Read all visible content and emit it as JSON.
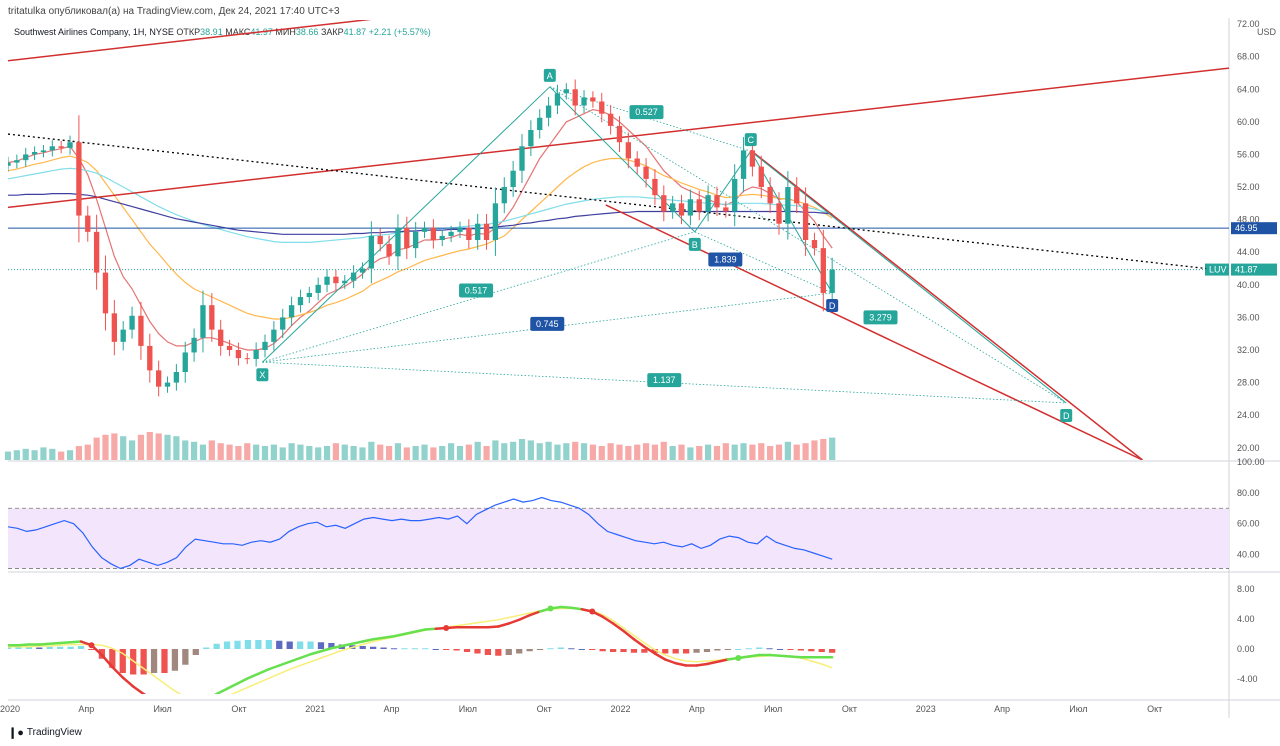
{
  "header": {
    "attribution": "tritatulka опубликовал(а) на TradingView.com, Дек 24, 2021 17:40 UTC+3"
  },
  "legend": {
    "symbol": "Southwest Airlines Company, 1Н, NYSE",
    "open_label": "ОТКР",
    "open": "38.91",
    "high_label": "МАКС",
    "high": "41.97",
    "low_label": "МИН",
    "low": "38.66",
    "close_label": "ЗАКР",
    "close": "41.87",
    "change": "+2.21 (+5.57%)"
  },
  "footer": {
    "brand": "TradingView"
  },
  "colors": {
    "bull": "#26a69a",
    "bear": "#ef5350",
    "bull_volume": "#92d2cc",
    "bear_volume": "#f7a9a7",
    "price_line": "#1e53a5",
    "current_price": "#26a69a",
    "rsi_line": "#2962ff",
    "rsi_band": "#f3e5fb",
    "channel": "#d32f2f",
    "pattern": "#26a69a",
    "macd_fast": "#66e04d",
    "macd_slow": "#f7ef7a"
  },
  "chart_data": [
    {
      "type": "candlestick",
      "panel": "price",
      "currency": "USD",
      "y_ticks": [
        "72.00",
        "68.00",
        "64.00",
        "60.00",
        "56.00",
        "52.00",
        "48.00",
        "44.00",
        "40.00",
        "36.00",
        "32.00",
        "28.00",
        "24.00",
        "20.00"
      ],
      "ylim": [
        18.5,
        72.5
      ],
      "x_ticks": [
        "2020",
        "Апр",
        "Июл",
        "Окт",
        "2021",
        "Апр",
        "Июл",
        "Окт",
        "2022",
        "Апр",
        "Июл",
        "Окт",
        "2023",
        "Апр",
        "Июл",
        "Окт"
      ],
      "xlim": [
        0,
        48
      ],
      "horizontal_level": 46.95,
      "horizontal_level_label": "46.95",
      "last_price": 41.87,
      "last_price_label": "41.87",
      "ticker": "LUV",
      "close": [
        55.0,
        55.3,
        56.0,
        56.3,
        56.5,
        57.0,
        56.8,
        57.5,
        48.5,
        46.5,
        41.5,
        36.5,
        33.0,
        34.5,
        36.2,
        32.5,
        29.5,
        27.5,
        28.0,
        29.3,
        31.7,
        33.5,
        37.5,
        34.5,
        32.5,
        32.0,
        31.0,
        30.9,
        32.0,
        33.0,
        34.5,
        36.0,
        37.5,
        38.5,
        39.0,
        40.0,
        41.0,
        40.2,
        40.5,
        41.5,
        42.0,
        46.0,
        45.0,
        43.5,
        47.0,
        44.5,
        46.5,
        47.0,
        45.5,
        46.0,
        46.5,
        47.0,
        45.5,
        47.5,
        45.5,
        50.0,
        52.0,
        54.0,
        57.0,
        59.0,
        60.5,
        62.0,
        63.5,
        64.0,
        62.0,
        63.0,
        62.5,
        61.0,
        59.5,
        57.5,
        55.5,
        54.5,
        53.0,
        51.0,
        49.0,
        50.0,
        48.5,
        50.5,
        49.0,
        51.0,
        49.5,
        49.0,
        53.0,
        56.5,
        54.5,
        52.0,
        50.0,
        47.5,
        52.0,
        50.0,
        45.5,
        44.5,
        39.0,
        41.87
      ],
      "volume_relative": [
        0.3,
        0.35,
        0.4,
        0.35,
        0.45,
        0.4,
        0.3,
        0.35,
        0.5,
        0.55,
        0.8,
        0.9,
        0.95,
        0.85,
        0.7,
        0.9,
        1.0,
        0.95,
        0.9,
        0.85,
        0.7,
        0.65,
        0.55,
        0.7,
        0.6,
        0.55,
        0.5,
        0.6,
        0.55,
        0.5,
        0.55,
        0.45,
        0.6,
        0.55,
        0.5,
        0.45,
        0.5,
        0.6,
        0.55,
        0.5,
        0.45,
        0.65,
        0.55,
        0.5,
        0.6,
        0.45,
        0.5,
        0.55,
        0.45,
        0.5,
        0.6,
        0.5,
        0.55,
        0.65,
        0.5,
        0.7,
        0.6,
        0.65,
        0.75,
        0.7,
        0.6,
        0.65,
        0.55,
        0.6,
        0.65,
        0.6,
        0.55,
        0.5,
        0.6,
        0.55,
        0.5,
        0.55,
        0.6,
        0.55,
        0.65,
        0.5,
        0.55,
        0.45,
        0.5,
        0.55,
        0.5,
        0.6,
        0.55,
        0.6,
        0.55,
        0.6,
        0.5,
        0.55,
        0.65,
        0.55,
        0.6,
        0.7,
        0.75,
        0.8
      ],
      "moving_averages": [
        {
          "color": "#e57373",
          "values": [
            55,
            55.2,
            55.6,
            56,
            56.2,
            56.5,
            56.7,
            57,
            55.5,
            53.5,
            50.5,
            47,
            43.5,
            41,
            39.5,
            37.5,
            35.5,
            34,
            33,
            32.5,
            32.5,
            33,
            33.5,
            33.5,
            33.2,
            32.8,
            32.3,
            32,
            32,
            32.2,
            32.8,
            33.8,
            35,
            36,
            36.8,
            37.8,
            38.8,
            39.3,
            39.8,
            40.5,
            41.3,
            42.5,
            43.2,
            43.5,
            44.3,
            44.5,
            45,
            45.5,
            45.5,
            45.6,
            45.8,
            46.2,
            46,
            46.3,
            46.2,
            47,
            48,
            49.5,
            51.5,
            53.5,
            55.5,
            57,
            58.5,
            60,
            60.5,
            61,
            61.5,
            61.3,
            60.8,
            60,
            59,
            58,
            57,
            55.5,
            54,
            53,
            52,
            51.5,
            51,
            50.5,
            50,
            49.8,
            50.3,
            51.5,
            52,
            51.8,
            51.2,
            50.5,
            50.6,
            50.2,
            49,
            47.8,
            46,
            44.5
          ]
        },
        {
          "color": "#ffb74d",
          "values": [
            54,
            54.2,
            54.5,
            54.8,
            55,
            55.3,
            55.6,
            55.8,
            55.5,
            55,
            54,
            52.5,
            51,
            49.5,
            48,
            46.5,
            45,
            43.8,
            42.5,
            41.3,
            40.3,
            39.5,
            39,
            38.5,
            38,
            37.5,
            37,
            36.5,
            36.2,
            36,
            35.8,
            35.8,
            36,
            36.3,
            36.6,
            37,
            37.5,
            37.8,
            38.2,
            38.7,
            39.2,
            40,
            40.5,
            41,
            41.6,
            42,
            42.5,
            43,
            43.3,
            43.6,
            43.9,
            44.2,
            44.4,
            44.7,
            45,
            45.5,
            46,
            47,
            48,
            49,
            50,
            51,
            52,
            53,
            53.8,
            54.5,
            55,
            55.3,
            55.5,
            55.5,
            55.3,
            55,
            54.6,
            54,
            53.4,
            53,
            52.5,
            52.1,
            51.7,
            51.4,
            51,
            50.7,
            50.8,
            51,
            51.1,
            51,
            50.8,
            50.6,
            50.5,
            50.3,
            49.9,
            49.5,
            48.9,
            48.2
          ]
        },
        {
          "color": "#80deea",
          "values": [
            53,
            53.2,
            53.4,
            53.6,
            53.8,
            54,
            54.2,
            54.3,
            54.2,
            54,
            53.7,
            53.2,
            52.6,
            52,
            51.4,
            50.8,
            50.2,
            49.6,
            49.1,
            48.6,
            48.2,
            47.8,
            47.4,
            47.1,
            46.8,
            46.5,
            46.2,
            45.9,
            45.7,
            45.5,
            45.3,
            45.2,
            45.2,
            45.2,
            45.2,
            45.3,
            45.4,
            45.5,
            45.6,
            45.7,
            45.8,
            46,
            46.1,
            46.2,
            46.4,
            46.5,
            46.6,
            46.7,
            46.8,
            46.9,
            47,
            47.1,
            47.2,
            47.3,
            47.4,
            47.6,
            47.8,
            48.1,
            48.4,
            48.7,
            49,
            49.3,
            49.6,
            49.9,
            50.1,
            50.3,
            50.5,
            50.6,
            50.7,
            50.8,
            50.8,
            50.8,
            50.7,
            50.6,
            50.5,
            50.4,
            50.3,
            50.2,
            50.1,
            50,
            49.9,
            49.9,
            49.9,
            50,
            50,
            50,
            49.9,
            49.8,
            49.8,
            49.7,
            49.5,
            49.3,
            49,
            48.7
          ]
        },
        {
          "color": "#3f3fa0",
          "values": [
            51,
            51,
            51.1,
            51.1,
            51.1,
            51.2,
            51.2,
            51.2,
            51.1,
            51,
            50.8,
            50.5,
            50.2,
            49.9,
            49.6,
            49.3,
            49,
            48.7,
            48.4,
            48.1,
            47.9,
            47.7,
            47.5,
            47.3,
            47.1,
            46.9,
            46.7,
            46.6,
            46.5,
            46.4,
            46.3,
            46.2,
            46.2,
            46.2,
            46.2,
            46.2,
            46.2,
            46.2,
            46.2,
            46.3,
            46.3,
            46.4,
            46.4,
            46.5,
            46.5,
            46.6,
            46.6,
            46.7,
            46.7,
            46.7,
            46.8,
            46.8,
            46.9,
            46.9,
            47,
            47.1,
            47.2,
            47.3,
            47.5,
            47.6,
            47.8,
            47.9,
            48.1,
            48.2,
            48.4,
            48.5,
            48.6,
            48.7,
            48.8,
            48.9,
            48.9,
            49,
            49,
            49,
            49,
            49,
            49,
            49,
            49,
            49,
            49,
            49,
            49,
            49,
            49,
            49,
            49,
            49,
            49,
            49,
            48.9,
            48.9,
            48.8,
            48.7
          ]
        }
      ],
      "channel_lines": [
        {
          "from": [
            0,
            67.5
          ],
          "to": [
            48,
            84.6
          ]
        },
        {
          "from": [
            0,
            49.5
          ],
          "to": [
            48,
            66.6
          ]
        },
        {
          "from": [
            29.2,
            56.5
          ],
          "to": [
            44.6,
            18.5
          ]
        },
        {
          "from": [
            23.5,
            49.8
          ],
          "to": [
            44.6,
            18.5
          ]
        }
      ],
      "trend_line": {
        "from": [
          0,
          58.5
        ],
        "to": [
          47.1,
          42.0
        ]
      },
      "harmonic_pattern": {
        "points": [
          {
            "label": "X",
            "x": 10.0,
            "y": 30.5
          },
          {
            "label": "A",
            "x": 21.3,
            "y": 64.3
          },
          {
            "label": "B",
            "x": 27.0,
            "y": 46.5
          },
          {
            "label": "C",
            "x": 29.2,
            "y": 56.4
          },
          {
            "label": "D",
            "x": 32.4,
            "y": 39.0
          },
          {
            "label": "D",
            "x": 41.6,
            "y": 25.5
          }
        ],
        "ratios": [
          {
            "label": "0.527",
            "x": 25.1,
            "y": 61.2
          },
          {
            "label": "0.517",
            "x": 18.4,
            "y": 39.3
          },
          {
            "label": "1.839",
            "x": 28.2,
            "y": 43.1
          },
          {
            "label": "0.745",
            "x": 21.2,
            "y": 35.2
          },
          {
            "label": "3.279",
            "x": 34.3,
            "y": 36.0
          },
          {
            "label": "1.137",
            "x": 25.8,
            "y": 28.3
          }
        ]
      }
    },
    {
      "type": "line",
      "panel": "rsi",
      "y_ticks": [
        "100.00",
        "80.00",
        "60.00",
        "40.00"
      ],
      "ylim": [
        30,
        100
      ],
      "band": [
        31,
        70
      ],
      "x_start": 0,
      "values": [
        58,
        57,
        55,
        56,
        58,
        60,
        62,
        60,
        54,
        45,
        38,
        34,
        31,
        33,
        37,
        35,
        33,
        35,
        38,
        45,
        50,
        49,
        48,
        47,
        47,
        46,
        48,
        49,
        48,
        50,
        55,
        58,
        60,
        61,
        58,
        59,
        57,
        60,
        63,
        64,
        63,
        62,
        63,
        62,
        62,
        63,
        64,
        63,
        65,
        60,
        66,
        69,
        72,
        74,
        76,
        74,
        75,
        77,
        75,
        74,
        72,
        70,
        66,
        60,
        55,
        53,
        51,
        49,
        48,
        47,
        48,
        46,
        45,
        47,
        44,
        46,
        50,
        52,
        51,
        48,
        47,
        52,
        48,
        46,
        44,
        43,
        41,
        39,
        37
      ]
    },
    {
      "type": "line",
      "panel": "macd",
      "y_ticks": [
        "8.00",
        "4.00",
        "0.00",
        "-4.00"
      ],
      "ylim": [
        -6,
        10
      ],
      "fast": [
        0.5,
        0.5,
        0.6,
        0.6,
        0.7,
        0.8,
        0.9,
        1.0,
        0.5,
        -0.8,
        -2.4,
        -3.8,
        -5.0,
        -6.0,
        -6.8,
        -7.8,
        -8.5,
        -8.5,
        -7.6,
        -6.7,
        -6.0,
        -5.3,
        -4.6,
        -3.9,
        -3.3,
        -2.7,
        -2.2,
        -1.7,
        -1.2,
        -0.7,
        -0.3,
        0.1,
        0.4,
        0.7,
        1.0,
        1.3,
        1.5,
        1.7,
        2.0,
        2.3,
        2.6,
        2.7,
        2.8,
        2.9,
        2.9,
        2.9,
        2.9,
        3.0,
        3.4,
        3.9,
        4.5,
        5.0,
        5.4,
        5.6,
        5.5,
        5.3,
        5.0,
        4.3,
        3.4,
        2.4,
        1.3,
        0.3,
        -0.6,
        -1.4,
        -1.9,
        -2.2,
        -2.2,
        -2.0,
        -1.7,
        -1.4,
        -1.2,
        -1.0,
        -0.8,
        -0.8,
        -0.9,
        -1.0,
        -1.1,
        -1.1,
        -1.1,
        -1.1
      ],
      "signal": [
        0.3,
        0.3,
        0.3,
        0.4,
        0.4,
        0.5,
        0.6,
        0.6,
        0.6,
        0.5,
        0.1,
        -0.6,
        -1.6,
        -2.6,
        -3.6,
        -4.6,
        -5.6,
        -6.4,
        -6.8,
        -6.9,
        -6.7,
        -6.3,
        -5.7,
        -5.1,
        -4.5,
        -3.9,
        -3.3,
        -2.7,
        -2.2,
        -1.7,
        -1.2,
        -0.7,
        -0.2,
        0.2,
        0.6,
        1.0,
        1.3,
        1.6,
        1.9,
        2.2,
        2.5,
        2.7,
        2.9,
        3.1,
        3.3,
        3.5,
        3.7,
        3.9,
        4.2,
        4.5,
        4.8,
        5.1,
        5.3,
        5.4,
        5.4,
        5.3,
        5.1,
        4.6,
        3.8,
        2.8,
        1.8,
        0.8,
        -0.1,
        -0.8,
        -1.3,
        -1.6,
        -1.7,
        -1.6,
        -1.5,
        -1.3,
        -1.2,
        -1.1,
        -1.0,
        -0.9,
        -0.9,
        -1.0,
        -1.2,
        -1.6,
        -2.0,
        -2.5
      ],
      "histogram": [
        0.2,
        0.2,
        0.3,
        0.2,
        0.3,
        0.3,
        0.3,
        0.4,
        -0.1,
        -1.3,
        -2.5,
        -3.2,
        -3.4,
        -3.4,
        -3.2,
        -3.2,
        -2.9,
        -2.1,
        -0.8,
        0.2,
        0.7,
        1.0,
        1.1,
        1.2,
        1.2,
        1.2,
        1.1,
        1.0,
        1.0,
        1.0,
        0.9,
        0.8,
        0.6,
        0.5,
        0.4,
        0.3,
        0.2,
        0.1,
        0.1,
        0.1,
        0.1,
        0.0,
        -0.1,
        -0.2,
        -0.4,
        -0.6,
        -0.8,
        -0.9,
        -0.8,
        -0.6,
        -0.3,
        -0.1,
        0.1,
        0.2,
        0.1,
        0.0,
        -0.1,
        -0.3,
        -0.4,
        -0.4,
        -0.5,
        -0.5,
        -0.5,
        -0.6,
        -0.6,
        -0.6,
        -0.5,
        -0.4,
        -0.2,
        -0.1,
        0.0,
        0.1,
        0.2,
        0.1,
        0.0,
        -0.1,
        -0.2,
        -0.3,
        -0.4,
        -0.5
      ]
    }
  ]
}
